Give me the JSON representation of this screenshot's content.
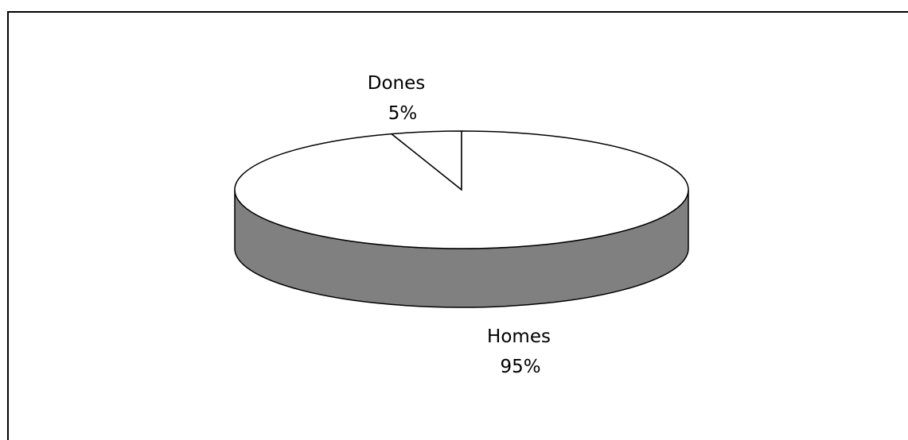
{
  "chart_data": {
    "type": "pie",
    "style": "3d",
    "slices": [
      {
        "label": "Dones",
        "value": 5,
        "percent_label": "5%",
        "color": "#ffffff"
      },
      {
        "label": "Homes",
        "value": 95,
        "percent_label": "95%",
        "color": "#ffffff"
      }
    ],
    "side_color": "#808080",
    "outline_color": "#000000",
    "legend": "none"
  }
}
